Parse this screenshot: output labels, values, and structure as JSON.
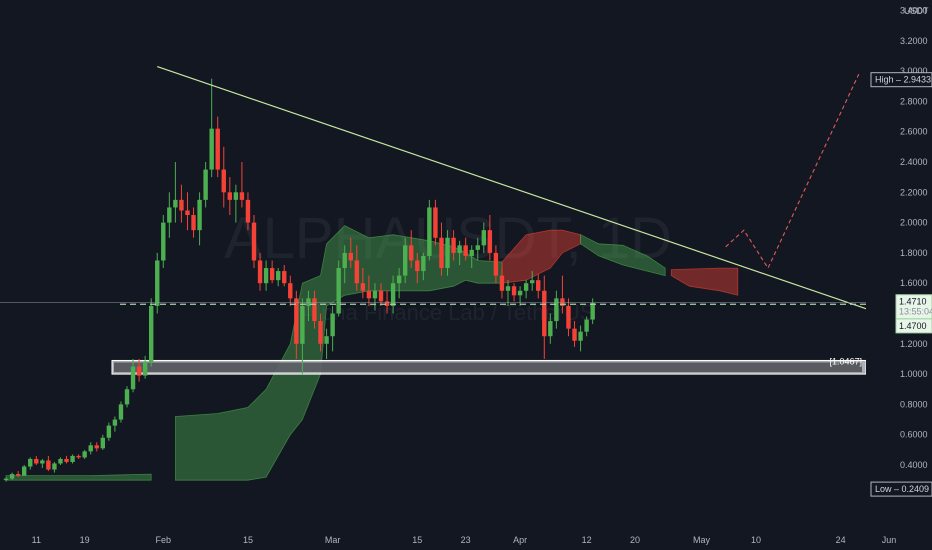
{
  "chart_data": {
    "type": "candlestick",
    "symbol_watermark": "ALPHAUSDT, 1D",
    "watermark_subtitle": "Alpha Finance Lab / TetherUS",
    "currency": "USDT",
    "y_ticks": [
      "3.4000",
      "3.2000",
      "3.0000",
      "2.8000",
      "2.6000",
      "2.4000",
      "2.2000",
      "2.0000",
      "1.8000",
      "1.6000",
      "1.4000",
      "1.2000",
      "1.0000",
      "0.8000",
      "0.6000",
      "0.4000"
    ],
    "y_tick_values": [
      3.4,
      3.2,
      3.0,
      2.8,
      2.6,
      2.4,
      2.2,
      2.0,
      1.8,
      1.6,
      1.4,
      1.2,
      1.0,
      0.8,
      0.6,
      0.4
    ],
    "x_labels": [
      "11",
      "19",
      "Feb",
      "15",
      "Mar",
      "15",
      "23",
      "Apr",
      "12",
      "20",
      "May",
      "10",
      "24",
      "Jun"
    ],
    "x_label_dates": [
      "2021-01-11",
      "2021-01-19",
      "2021-02-01",
      "2021-02-15",
      "2021-03-01",
      "2021-03-15",
      "2021-03-23",
      "2021-04-01",
      "2021-04-12",
      "2021-04-20",
      "2021-05-01",
      "2021-05-10",
      "2021-05-24",
      "2021-06-01"
    ],
    "y_range": [
      0.22,
      3.5
    ],
    "x_range": [
      "2021-01-05",
      "2021-06-01"
    ],
    "first_candle_date": "2021-01-06",
    "candles": [
      [
        0.3,
        0.32,
        0.29,
        0.31
      ],
      [
        0.31,
        0.35,
        0.3,
        0.34
      ],
      [
        0.34,
        0.36,
        0.32,
        0.33
      ],
      [
        0.33,
        0.4,
        0.33,
        0.39
      ],
      [
        0.39,
        0.45,
        0.37,
        0.44
      ],
      [
        0.44,
        0.46,
        0.4,
        0.41
      ],
      [
        0.41,
        0.44,
        0.38,
        0.43
      ],
      [
        0.43,
        0.46,
        0.36,
        0.37
      ],
      [
        0.37,
        0.42,
        0.35,
        0.41
      ],
      [
        0.41,
        0.45,
        0.4,
        0.44
      ],
      [
        0.44,
        0.46,
        0.41,
        0.42
      ],
      [
        0.42,
        0.47,
        0.41,
        0.46
      ],
      [
        0.46,
        0.47,
        0.44,
        0.45
      ],
      [
        0.45,
        0.5,
        0.44,
        0.49
      ],
      [
        0.49,
        0.55,
        0.47,
        0.53
      ],
      [
        0.53,
        0.55,
        0.49,
        0.51
      ],
      [
        0.51,
        0.6,
        0.5,
        0.58
      ],
      [
        0.58,
        0.68,
        0.56,
        0.66
      ],
      [
        0.66,
        0.72,
        0.62,
        0.7
      ],
      [
        0.7,
        0.82,
        0.68,
        0.8
      ],
      [
        0.8,
        0.92,
        0.78,
        0.9
      ],
      [
        0.9,
        1.1,
        0.88,
        1.05
      ],
      [
        1.05,
        1.1,
        0.95,
        0.99
      ],
      [
        0.99,
        1.12,
        0.97,
        1.08
      ],
      [
        1.08,
        1.5,
        1.05,
        1.45
      ],
      [
        1.45,
        1.8,
        1.4,
        1.75
      ],
      [
        1.75,
        2.05,
        1.7,
        2.0
      ],
      [
        2.0,
        2.2,
        1.9,
        2.1
      ],
      [
        2.1,
        2.4,
        2.0,
        2.15
      ],
      [
        2.15,
        2.25,
        2.0,
        2.08
      ],
      [
        2.08,
        2.2,
        1.95,
        2.05
      ],
      [
        2.05,
        2.1,
        1.9,
        1.95
      ],
      [
        1.95,
        2.2,
        1.85,
        2.15
      ],
      [
        2.15,
        2.4,
        2.1,
        2.35
      ],
      [
        2.35,
        2.95,
        2.3,
        2.62
      ],
      [
        2.62,
        2.7,
        2.3,
        2.35
      ],
      [
        2.35,
        2.5,
        2.1,
        2.2
      ],
      [
        2.2,
        2.3,
        2.05,
        2.15
      ],
      [
        2.15,
        2.25,
        2.0,
        2.2
      ],
      [
        2.2,
        2.4,
        2.1,
        2.15
      ],
      [
        2.15,
        2.2,
        1.95,
        2.0
      ],
      [
        2.0,
        2.05,
        1.7,
        1.75
      ],
      [
        1.75,
        1.8,
        1.55,
        1.6
      ],
      [
        1.6,
        1.75,
        1.55,
        1.7
      ],
      [
        1.7,
        1.75,
        1.6,
        1.62
      ],
      [
        1.62,
        1.7,
        1.58,
        1.68
      ],
      [
        1.68,
        1.72,
        1.58,
        1.6
      ],
      [
        1.6,
        1.65,
        1.45,
        1.5
      ],
      [
        1.5,
        1.55,
        1.1,
        1.2
      ],
      [
        1.2,
        1.5,
        1.0,
        1.45
      ],
      [
        1.45,
        1.55,
        1.35,
        1.5
      ],
      [
        1.5,
        1.55,
        1.3,
        1.35
      ],
      [
        1.35,
        1.4,
        1.15,
        1.2
      ],
      [
        1.2,
        1.3,
        1.1,
        1.25
      ],
      [
        1.25,
        1.45,
        1.15,
        1.4
      ],
      [
        1.4,
        1.75,
        1.38,
        1.7
      ],
      [
        1.7,
        1.85,
        1.6,
        1.8
      ],
      [
        1.8,
        1.9,
        1.7,
        1.75
      ],
      [
        1.75,
        1.85,
        1.55,
        1.6
      ],
      [
        1.6,
        1.7,
        1.5,
        1.55
      ],
      [
        1.55,
        1.65,
        1.45,
        1.5
      ],
      [
        1.5,
        1.6,
        1.42,
        1.55
      ],
      [
        1.55,
        1.6,
        1.45,
        1.48
      ],
      [
        1.48,
        1.55,
        1.4,
        1.45
      ],
      [
        1.45,
        1.65,
        1.4,
        1.6
      ],
      [
        1.6,
        1.7,
        1.5,
        1.65
      ],
      [
        1.65,
        1.9,
        1.6,
        1.85
      ],
      [
        1.85,
        1.95,
        1.7,
        1.75
      ],
      [
        1.75,
        1.8,
        1.6,
        1.68
      ],
      [
        1.68,
        1.8,
        1.62,
        1.78
      ],
      [
        1.78,
        2.15,
        1.75,
        2.1
      ],
      [
        2.1,
        2.15,
        1.85,
        1.9
      ],
      [
        1.9,
        2.0,
        1.65,
        1.7
      ],
      [
        1.7,
        1.95,
        1.65,
        1.9
      ],
      [
        1.9,
        1.95,
        1.75,
        1.8
      ],
      [
        1.8,
        1.88,
        1.72,
        1.85
      ],
      [
        1.85,
        1.9,
        1.75,
        1.78
      ],
      [
        1.78,
        1.85,
        1.7,
        1.82
      ],
      [
        1.82,
        1.9,
        1.75,
        1.85
      ],
      [
        1.85,
        2.0,
        1.8,
        1.95
      ],
      [
        1.95,
        2.05,
        1.75,
        1.8
      ],
      [
        1.8,
        1.85,
        1.6,
        1.65
      ],
      [
        1.65,
        1.7,
        1.5,
        1.55
      ],
      [
        1.55,
        1.62,
        1.45,
        1.58
      ],
      [
        1.58,
        1.6,
        1.48,
        1.52
      ],
      [
        1.52,
        1.58,
        1.45,
        1.55
      ],
      [
        1.55,
        1.62,
        1.5,
        1.6
      ],
      [
        1.6,
        1.68,
        1.55,
        1.62
      ],
      [
        1.62,
        1.66,
        1.5,
        1.55
      ],
      [
        1.55,
        1.65,
        1.1,
        1.25
      ],
      [
        1.25,
        1.4,
        1.2,
        1.35
      ],
      [
        1.35,
        1.55,
        1.3,
        1.5
      ],
      [
        1.5,
        1.65,
        1.4,
        1.45
      ],
      [
        1.45,
        1.5,
        1.25,
        1.3
      ],
      [
        1.3,
        1.35,
        1.18,
        1.22
      ],
      [
        1.22,
        1.32,
        1.15,
        1.28
      ],
      [
        1.28,
        1.38,
        1.25,
        1.36
      ],
      [
        1.36,
        1.5,
        1.33,
        1.47
      ]
    ],
    "support_zone": {
      "top": 1.09,
      "bottom": 1.0,
      "label": "1.0467"
    },
    "current_price_line": 1.471,
    "price_tags": {
      "current": "1.4710",
      "current_sub": "13:55:04",
      "prev": "1.4700",
      "high_label": "High",
      "high_value": "2.9433",
      "low_label": "Low",
      "low_value": "0.2409",
      "high": 2.9433,
      "low": 0.2409,
      "zone_value": 1.0467
    },
    "trendline": {
      "start": [
        "2021-01-31",
        3.03
      ],
      "end": [
        "2021-06-01",
        1.38
      ]
    },
    "projection": {
      "path": [
        [
          "2021-05-05",
          1.84
        ],
        [
          "2021-05-08",
          1.95
        ],
        [
          "2021-05-12",
          1.7
        ],
        [
          "2021-05-27",
          2.98
        ]
      ]
    },
    "ichimoku_cloud": {
      "segments": [
        {
          "color": "#4caf50",
          "upper": [
            [
              0,
              0.33
            ],
            [
              14,
              0.33
            ],
            [
              24,
              0.34
            ]
          ],
          "lower": [
            [
              0,
              0.3
            ],
            [
              14,
              0.3
            ],
            [
              24,
              0.3
            ]
          ]
        },
        {
          "color": "#4caf50",
          "upper": [
            [
              28,
              0.72
            ],
            [
              35,
              0.74
            ],
            [
              40,
              0.78
            ],
            [
              43,
              0.9
            ],
            [
              47,
              1.2
            ],
            [
              49,
              1.6
            ],
            [
              52,
              1.65
            ],
            [
              53,
              1.86
            ],
            [
              56,
              1.98
            ],
            [
              60,
              1.9
            ],
            [
              64,
              1.92
            ],
            [
              70,
              1.88
            ],
            [
              74,
              1.84
            ],
            [
              76,
              1.8
            ],
            [
              78,
              1.75
            ],
            [
              82,
              1.74
            ]
          ],
          "lower": [
            [
              28,
              0.3
            ],
            [
              35,
              0.3
            ],
            [
              40,
              0.3
            ],
            [
              43,
              0.32
            ],
            [
              47,
              0.6
            ],
            [
              49,
              0.7
            ],
            [
              52,
              1.0
            ],
            [
              53,
              1.45
            ],
            [
              56,
              1.52
            ],
            [
              60,
              1.55
            ],
            [
              64,
              1.55
            ],
            [
              70,
              1.55
            ],
            [
              74,
              1.58
            ],
            [
              76,
              1.62
            ],
            [
              78,
              1.6
            ],
            [
              82,
              1.6
            ]
          ]
        },
        {
          "color": "#f44336",
          "upper": [
            [
              82,
              1.74
            ],
            [
              86,
              1.92
            ],
            [
              90,
              1.95
            ],
            [
              92,
              1.95
            ],
            [
              95,
              1.92
            ]
          ],
          "lower": [
            [
              82,
              1.6
            ],
            [
              86,
              1.62
            ],
            [
              90,
              1.7
            ],
            [
              92,
              1.8
            ],
            [
              95,
              1.86
            ]
          ]
        },
        {
          "color": "#4caf50",
          "upper": [
            [
              95,
              1.92
            ],
            [
              98,
              1.86
            ],
            [
              102,
              1.85
            ],
            [
              106,
              1.78
            ],
            [
              109,
              1.7
            ]
          ],
          "lower": [
            [
              95,
              1.86
            ],
            [
              98,
              1.78
            ],
            [
              102,
              1.72
            ],
            [
              106,
              1.68
            ],
            [
              109,
              1.65
            ]
          ]
        },
        {
          "color": "#f44336",
          "upper": [
            [
              110,
              1.69
            ],
            [
              118,
              1.7
            ],
            [
              121,
              1.7
            ]
          ],
          "lower": [
            [
              110,
              1.65
            ],
            [
              113,
              1.58
            ],
            [
              118,
              1.55
            ],
            [
              121,
              1.52
            ]
          ]
        }
      ]
    },
    "colors": {
      "up": "#4caf50",
      "down": "#f44336",
      "trendline": "#c8e6a0",
      "projection": "#e05a5a",
      "price_line": "#a5d6a7",
      "background": "#131722"
    },
    "grid": false
  }
}
